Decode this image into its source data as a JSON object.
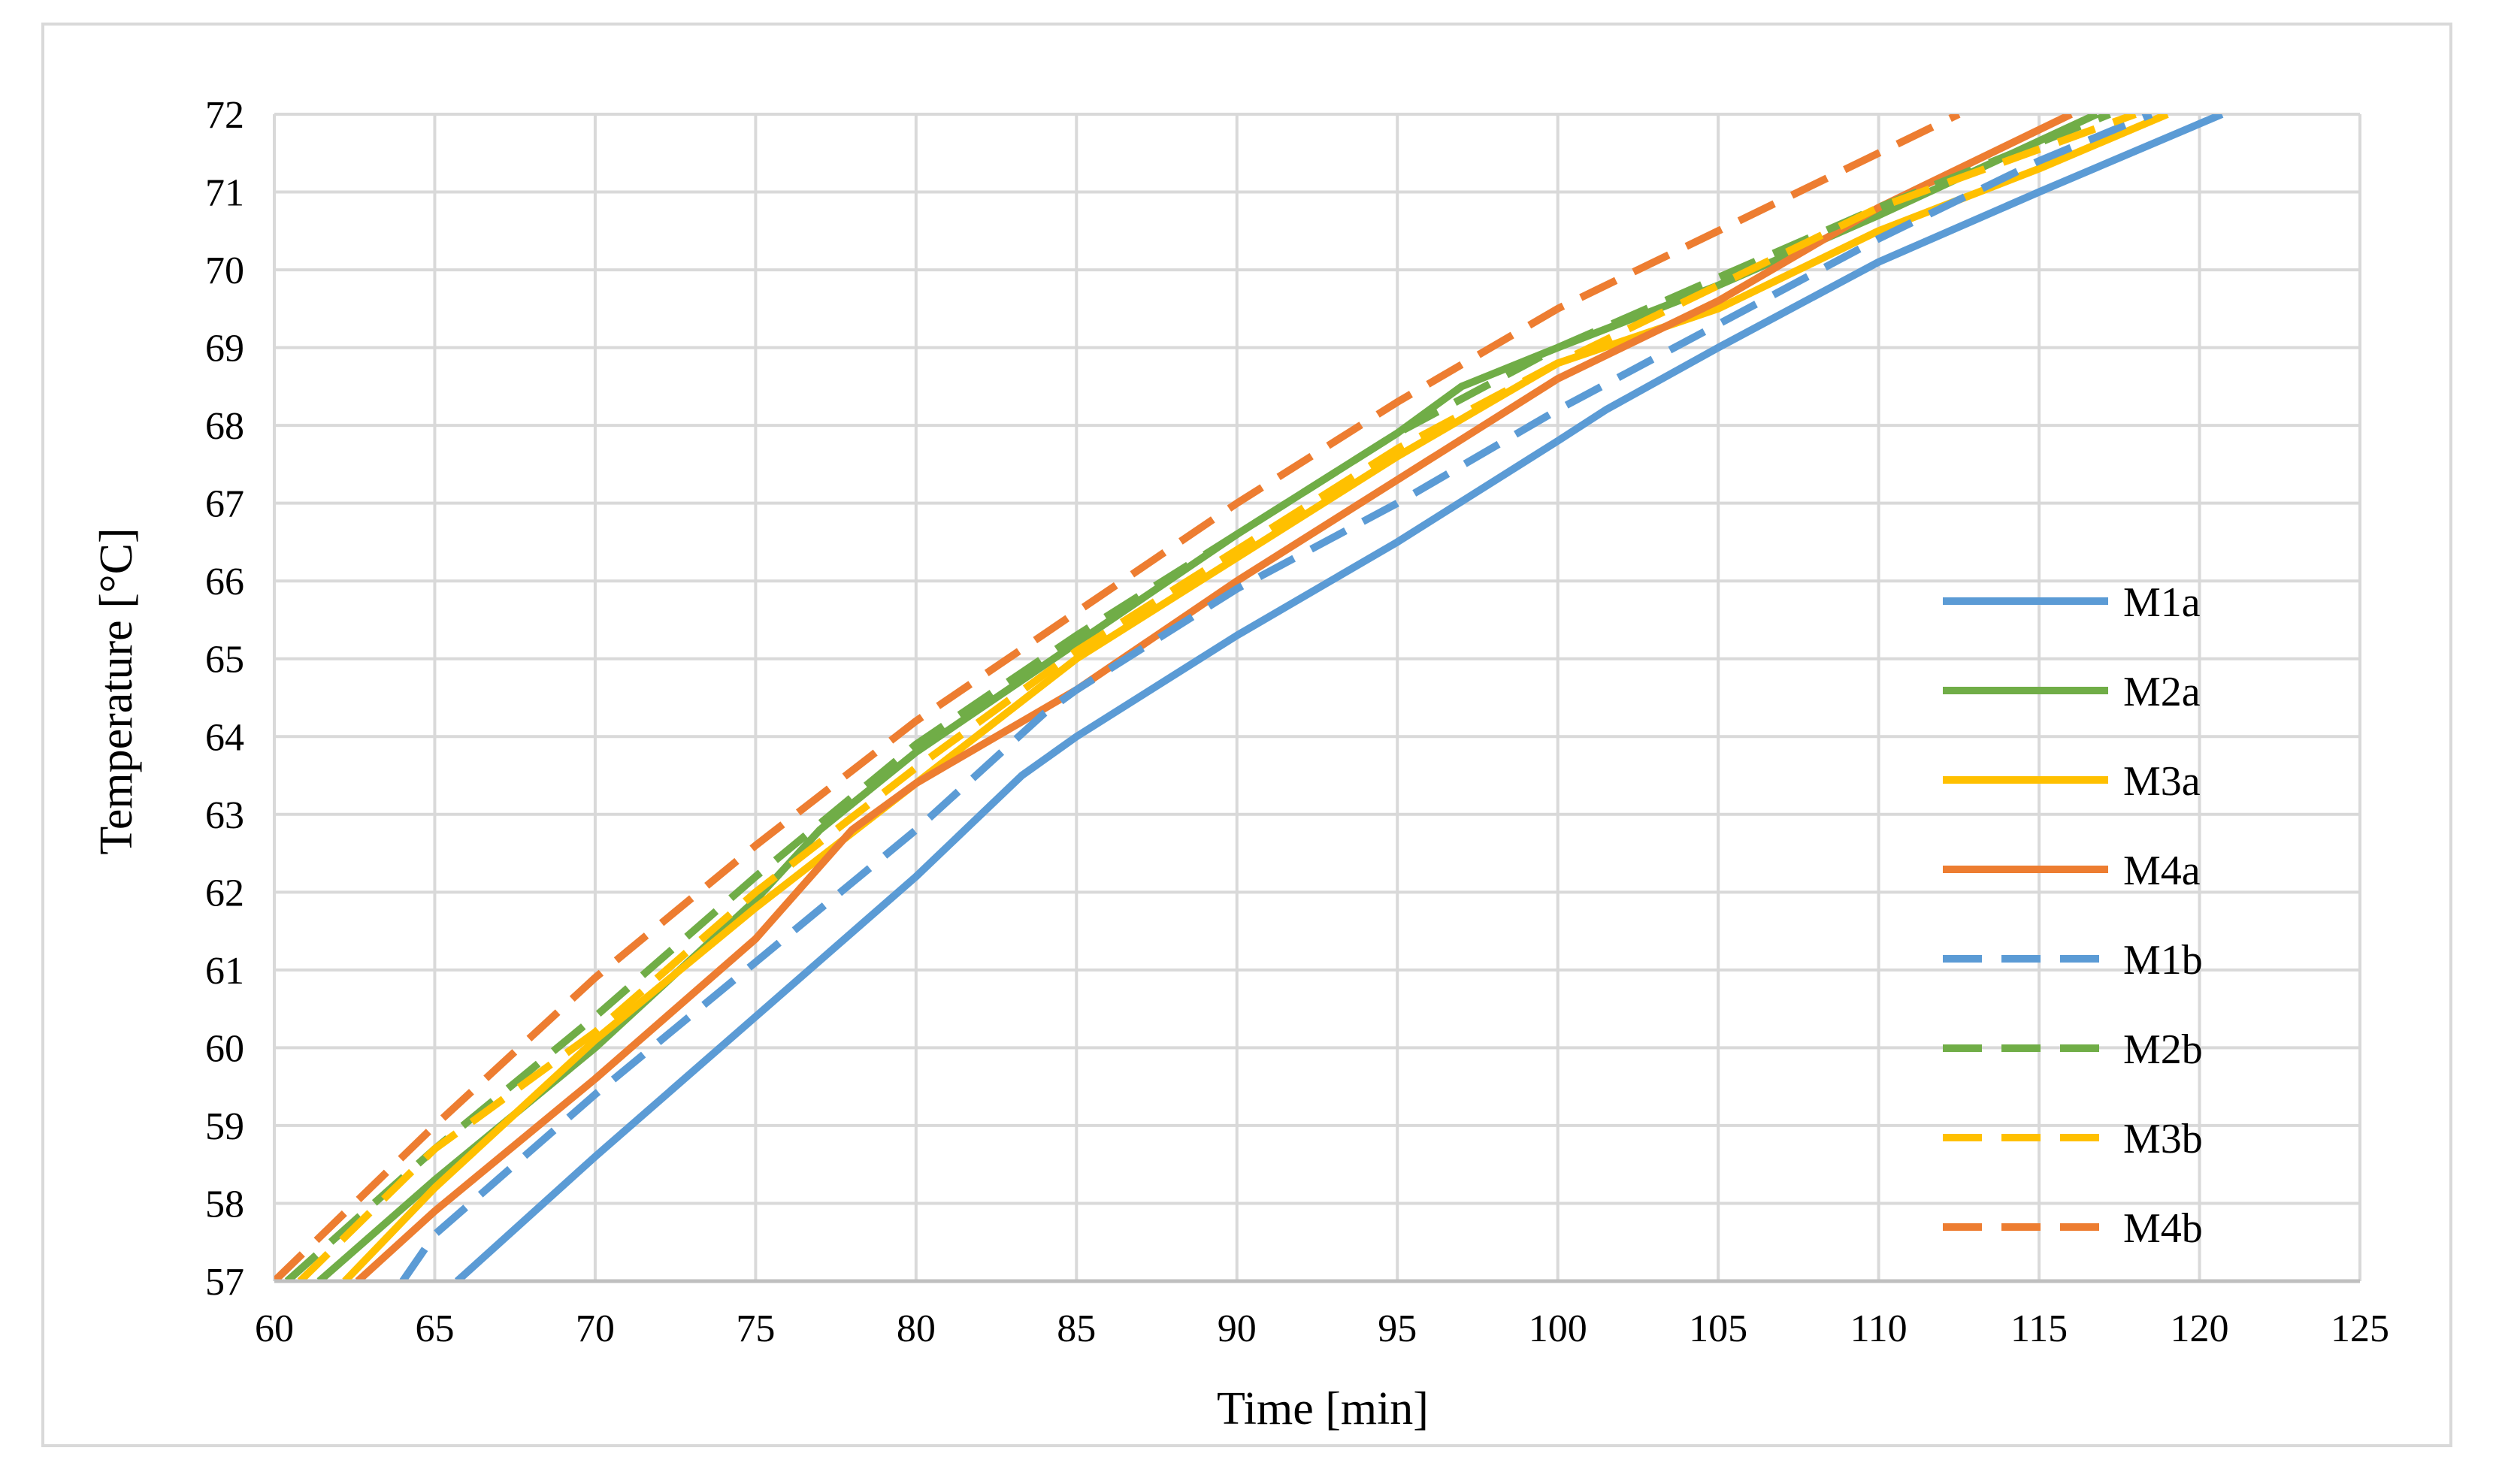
{
  "chart_data": {
    "type": "line",
    "title": "",
    "xlabel": "Time [min]",
    "ylabel": "Temperature [°C]",
    "xlim": [
      60,
      125
    ],
    "ylim": [
      57,
      72
    ],
    "x_ticks": [
      "60",
      "65",
      "70",
      "75",
      "80",
      "85",
      "90",
      "95",
      "100",
      "105",
      "110",
      "115",
      "120",
      "125"
    ],
    "y_ticks": [
      "57",
      "58",
      "59",
      "60",
      "61",
      "62",
      "63",
      "64",
      "65",
      "66",
      "67",
      "68",
      "69",
      "70",
      "71",
      "72"
    ],
    "grid": true,
    "legend_position": "right",
    "series": [
      {
        "name": "M1a",
        "color": "#5b9bd5",
        "dash": "solid",
        "points": [
          [
            65.7,
            57
          ],
          [
            70,
            58.6
          ],
          [
            75,
            60.4
          ],
          [
            80,
            62.2
          ],
          [
            83.3,
            63.5
          ],
          [
            85,
            64.0
          ],
          [
            90,
            65.3
          ],
          [
            95,
            66.5
          ],
          [
            100,
            67.8
          ],
          [
            101.5,
            68.2
          ],
          [
            105,
            69.0
          ],
          [
            110,
            70.1
          ],
          [
            115,
            71.0
          ],
          [
            120.7,
            72
          ]
        ]
      },
      {
        "name": "M2a",
        "color": "#70ad47",
        "dash": "solid",
        "points": [
          [
            61.4,
            57
          ],
          [
            65,
            58.3
          ],
          [
            70,
            60.0
          ],
          [
            75,
            61.9
          ],
          [
            77,
            62.8
          ],
          [
            80,
            63.8
          ],
          [
            85,
            65.2
          ],
          [
            90,
            66.6
          ],
          [
            95,
            67.9
          ],
          [
            97,
            68.5
          ],
          [
            100,
            69.0
          ],
          [
            105,
            69.8
          ],
          [
            110,
            70.7
          ],
          [
            116.8,
            72
          ]
        ]
      },
      {
        "name": "M3a",
        "color": "#ffc000",
        "dash": "solid",
        "points": [
          [
            62.2,
            57
          ],
          [
            65,
            58.2
          ],
          [
            70,
            60.1
          ],
          [
            75,
            61.8
          ],
          [
            80,
            63.4
          ],
          [
            85,
            65.0
          ],
          [
            90,
            66.3
          ],
          [
            95,
            67.6
          ],
          [
            100,
            68.8
          ],
          [
            105,
            69.5
          ],
          [
            110,
            70.5
          ],
          [
            115,
            71.3
          ],
          [
            119,
            72
          ]
        ]
      },
      {
        "name": "M4a",
        "color": "#ed7d31",
        "dash": "solid",
        "points": [
          [
            62.6,
            57
          ],
          [
            65,
            57.9
          ],
          [
            70,
            59.6
          ],
          [
            75,
            61.4
          ],
          [
            78,
            62.8
          ],
          [
            80,
            63.4
          ],
          [
            85,
            64.6
          ],
          [
            90,
            66.0
          ],
          [
            95,
            67.3
          ],
          [
            100,
            68.6
          ],
          [
            105,
            69.6
          ],
          [
            110,
            70.8
          ],
          [
            116,
            72
          ]
        ]
      },
      {
        "name": "M1b",
        "color": "#5b9bd5",
        "dash": "dashed",
        "points": [
          [
            64,
            57
          ],
          [
            65,
            57.6
          ],
          [
            70,
            59.4
          ],
          [
            75,
            61.1
          ],
          [
            80,
            62.8
          ],
          [
            84,
            64.3
          ],
          [
            85,
            64.6
          ],
          [
            90,
            65.9
          ],
          [
            95,
            67.0
          ],
          [
            100,
            68.2
          ],
          [
            105,
            69.3
          ],
          [
            110,
            70.4
          ],
          [
            115,
            71.4
          ],
          [
            118.5,
            72
          ]
        ]
      },
      {
        "name": "M2b",
        "color": "#70ad47",
        "dash": "dashed",
        "points": [
          [
            60.4,
            57
          ],
          [
            65,
            58.7
          ],
          [
            70,
            60.4
          ],
          [
            75,
            62.2
          ],
          [
            80,
            63.9
          ],
          [
            85,
            65.3
          ],
          [
            90,
            66.6
          ],
          [
            95,
            67.9
          ],
          [
            100,
            69.0
          ],
          [
            105,
            69.9
          ],
          [
            110,
            70.8
          ],
          [
            117.2,
            72
          ]
        ]
      },
      {
        "name": "M3b",
        "color": "#ffc000",
        "dash": "dashed",
        "points": [
          [
            60.8,
            57
          ],
          [
            65,
            58.7
          ],
          [
            70,
            60.2
          ],
          [
            75,
            62.0
          ],
          [
            80,
            63.6
          ],
          [
            85,
            65.1
          ],
          [
            90,
            66.4
          ],
          [
            95,
            67.7
          ],
          [
            100,
            68.8
          ],
          [
            105,
            69.8
          ],
          [
            110,
            70.8
          ],
          [
            118,
            72
          ]
        ]
      },
      {
        "name": "M4b",
        "color": "#ed7d31",
        "dash": "dashed",
        "points": [
          [
            60,
            57
          ],
          [
            65,
            59.0
          ],
          [
            70,
            60.9
          ],
          [
            75,
            62.6
          ],
          [
            80,
            64.2
          ],
          [
            85,
            65.6
          ],
          [
            90,
            67.0
          ],
          [
            95,
            68.3
          ],
          [
            100,
            69.5
          ],
          [
            105,
            70.5
          ],
          [
            110,
            71.5
          ],
          [
            112.5,
            72
          ]
        ]
      }
    ]
  }
}
